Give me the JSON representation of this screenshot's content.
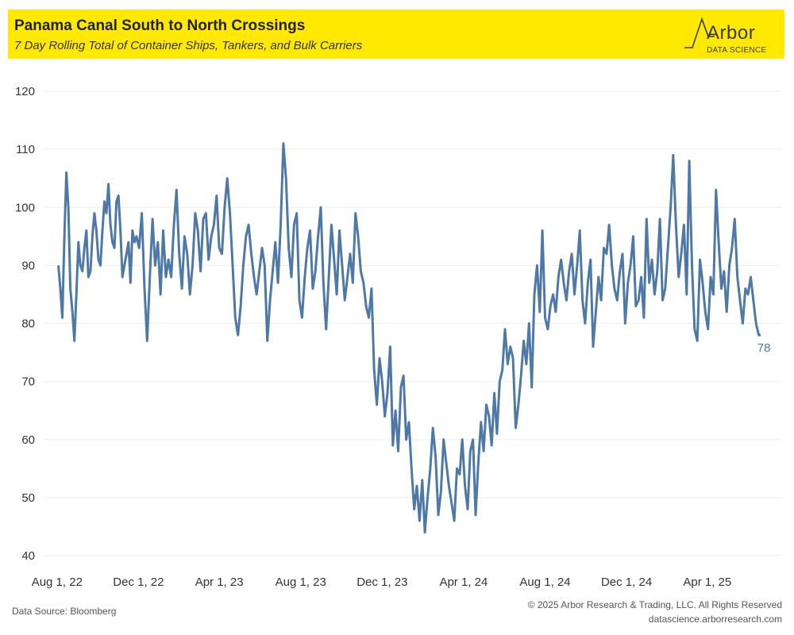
{
  "header": {
    "title": "Panama Canal South to North Crossings",
    "subtitle": "7 Day Rolling Total of Container Ships, Tankers, and Bulk Carriers"
  },
  "logo": {
    "word": "Arbor",
    "sub": "DATA SCIENCE"
  },
  "footer": {
    "source": "Data Source: Bloomberg",
    "copyright": "© 2025 Arbor Research & Trading, LLC. All Rights Reserved",
    "url": "datascience.arborresearch.com"
  },
  "colors": {
    "line": "#4e79a7",
    "banner": "#ffe900",
    "grid": "#eeeeee"
  },
  "chart_data": {
    "type": "line",
    "title": "Panama Canal South to North Crossings",
    "subtitle": "7 Day Rolling Total of Container Ships, Tankers, and Bulk Carriers",
    "xlabel": "",
    "ylabel": "",
    "ylim": [
      40,
      120
    ],
    "yticks": [
      40,
      50,
      60,
      70,
      80,
      90,
      100,
      110,
      120
    ],
    "xticks": [
      "2022-08-01",
      "2022-12-01",
      "2023-04-01",
      "2023-08-01",
      "2023-12-01",
      "2024-04-01",
      "2024-08-01",
      "2024-12-01",
      "2025-04-01"
    ],
    "xtick_labels": [
      "Aug 1, 22",
      "Dec 1, 22",
      "Apr 1, 23",
      "Aug 1, 23",
      "Dec 1, 23",
      "Apr 1, 24",
      "Aug 1, 24",
      "Dec 1, 24",
      "Apr 1, 25"
    ],
    "grid": true,
    "end_label": "78",
    "series": [
      {
        "x": [
          "2022-08-03",
          "2022-08-06",
          "2022-08-09",
          "2022-08-12",
          "2022-08-15",
          "2022-08-18",
          "2022-08-21",
          "2022-08-24",
          "2022-08-27",
          "2022-08-30",
          "2022-09-02",
          "2022-09-05",
          "2022-09-08",
          "2022-09-11",
          "2022-09-14",
          "2022-09-17",
          "2022-09-20",
          "2022-09-23",
          "2022-09-26",
          "2022-09-29",
          "2022-10-02",
          "2022-10-05",
          "2022-10-08",
          "2022-10-11",
          "2022-10-14",
          "2022-10-17",
          "2022-10-20",
          "2022-10-23",
          "2022-10-26",
          "2022-10-29",
          "2022-11-01",
          "2022-11-04",
          "2022-11-07",
          "2022-11-10",
          "2022-11-13",
          "2022-11-16",
          "2022-11-19",
          "2022-11-22",
          "2022-11-25",
          "2022-11-28",
          "2022-12-02",
          "2022-12-06",
          "2022-12-10",
          "2022-12-14",
          "2022-12-18",
          "2022-12-22",
          "2022-12-26",
          "2022-12-30",
          "2023-01-03",
          "2023-01-07",
          "2023-01-11",
          "2023-01-15",
          "2023-01-19",
          "2023-01-23",
          "2023-01-27",
          "2023-01-31",
          "2023-02-04",
          "2023-02-08",
          "2023-02-12",
          "2023-02-16",
          "2023-02-20",
          "2023-02-24",
          "2023-02-28",
          "2023-03-04",
          "2023-03-08",
          "2023-03-12",
          "2023-03-16",
          "2023-03-20",
          "2023-03-24",
          "2023-03-28",
          "2023-04-01",
          "2023-04-05",
          "2023-04-09",
          "2023-04-13",
          "2023-04-17",
          "2023-04-21",
          "2023-04-25",
          "2023-04-29",
          "2023-05-03",
          "2023-05-07",
          "2023-05-11",
          "2023-05-15",
          "2023-05-19",
          "2023-05-23",
          "2023-05-27",
          "2023-05-31",
          "2023-06-04",
          "2023-06-08",
          "2023-06-12",
          "2023-06-16",
          "2023-06-20",
          "2023-06-24",
          "2023-06-28",
          "2023-07-02",
          "2023-07-06",
          "2023-07-10",
          "2023-07-14",
          "2023-07-18",
          "2023-07-22",
          "2023-07-26",
          "2023-07-30",
          "2023-08-03",
          "2023-08-07",
          "2023-08-11",
          "2023-08-15",
          "2023-08-19",
          "2023-08-23",
          "2023-08-27",
          "2023-08-31",
          "2023-09-04",
          "2023-09-08",
          "2023-09-12",
          "2023-09-16",
          "2023-09-20",
          "2023-09-24",
          "2023-09-28",
          "2023-10-02",
          "2023-10-06",
          "2023-10-10",
          "2023-10-14",
          "2023-10-18",
          "2023-10-22",
          "2023-10-26",
          "2023-10-30",
          "2023-11-03",
          "2023-11-07",
          "2023-11-11",
          "2023-11-15",
          "2023-11-19",
          "2023-11-23",
          "2023-11-27",
          "2023-12-01",
          "2023-12-05",
          "2023-12-09",
          "2023-12-13",
          "2023-12-17",
          "2023-12-21",
          "2023-12-25",
          "2023-12-29",
          "2024-01-02",
          "2024-01-06",
          "2024-01-10",
          "2024-01-14",
          "2024-01-18",
          "2024-01-22",
          "2024-01-26",
          "2024-01-30",
          "2024-02-03",
          "2024-02-07",
          "2024-02-11",
          "2024-02-15",
          "2024-02-19",
          "2024-02-23",
          "2024-02-27",
          "2024-03-02",
          "2024-03-06",
          "2024-03-10",
          "2024-03-14",
          "2024-03-18",
          "2024-03-22",
          "2024-03-26",
          "2024-03-30",
          "2024-04-03",
          "2024-04-07",
          "2024-04-11",
          "2024-04-15",
          "2024-04-19",
          "2024-04-23",
          "2024-04-27",
          "2024-05-01",
          "2024-05-05",
          "2024-05-09",
          "2024-05-13",
          "2024-05-17",
          "2024-05-21",
          "2024-05-25",
          "2024-05-29",
          "2024-06-02",
          "2024-06-06",
          "2024-06-10",
          "2024-06-14",
          "2024-06-18",
          "2024-06-22",
          "2024-06-26",
          "2024-06-30",
          "2024-07-04",
          "2024-07-08",
          "2024-07-12",
          "2024-07-16",
          "2024-07-20",
          "2024-07-24",
          "2024-07-28",
          "2024-08-01",
          "2024-08-05",
          "2024-08-09",
          "2024-08-13",
          "2024-08-17",
          "2024-08-21",
          "2024-08-25",
          "2024-08-29",
          "2024-09-02",
          "2024-09-06",
          "2024-09-10",
          "2024-09-14",
          "2024-09-18",
          "2024-09-22",
          "2024-09-26",
          "2024-09-30",
          "2024-10-04",
          "2024-10-08",
          "2024-10-12",
          "2024-10-16",
          "2024-10-20",
          "2024-10-24",
          "2024-10-28",
          "2024-11-01",
          "2024-11-05",
          "2024-11-09",
          "2024-11-13",
          "2024-11-17",
          "2024-11-21",
          "2024-11-25",
          "2024-11-29",
          "2024-12-03",
          "2024-12-07",
          "2024-12-11",
          "2024-12-15",
          "2024-12-19",
          "2024-12-23",
          "2024-12-27",
          "2024-12-31",
          "2025-01-04",
          "2025-01-08",
          "2025-01-12",
          "2025-01-16",
          "2025-01-20",
          "2025-01-24",
          "2025-01-28",
          "2025-02-01",
          "2025-02-05",
          "2025-02-09",
          "2025-02-13",
          "2025-02-17",
          "2025-02-21",
          "2025-02-25",
          "2025-03-01",
          "2025-03-05",
          "2025-03-09",
          "2025-03-13",
          "2025-03-17",
          "2025-03-21",
          "2025-03-25",
          "2025-03-29",
          "2025-04-02",
          "2025-04-06",
          "2025-04-10",
          "2025-04-14",
          "2025-04-18",
          "2025-04-22",
          "2025-04-26",
          "2025-04-30",
          "2025-05-04",
          "2025-05-08",
          "2025-05-12",
          "2025-05-16",
          "2025-05-20",
          "2025-05-24",
          "2025-05-28",
          "2025-06-01",
          "2025-06-05",
          "2025-06-09",
          "2025-06-13",
          "2025-06-17",
          "2025-06-20"
        ],
        "values": [
          90,
          86,
          81,
          95,
          106,
          100,
          86,
          82,
          77,
          85,
          94,
          90,
          89,
          93,
          96,
          88,
          89,
          95,
          99,
          96,
          91,
          90,
          96,
          101,
          99,
          104,
          97,
          94,
          93,
          101,
          102,
          96,
          88,
          90,
          92,
          94,
          87,
          96,
          94,
          95,
          93,
          99,
          86,
          77,
          88,
          98,
          90,
          94,
          85,
          96,
          88,
          91,
          88,
          97,
          103,
          92,
          86,
          95,
          92,
          85,
          90,
          99,
          96,
          89,
          98,
          99,
          91,
          95,
          97,
          102,
          93,
          92,
          100,
          105,
          99,
          90,
          81,
          78,
          83,
          90,
          95,
          97,
          92,
          88,
          85,
          89,
          93,
          90,
          77,
          84,
          89,
          94,
          87,
          97,
          111,
          105,
          93,
          88,
          97,
          99,
          84,
          81,
          88,
          93,
          96,
          86,
          89,
          95,
          100,
          87,
          79,
          88,
          97,
          91,
          85,
          96,
          90,
          84,
          88,
          92,
          87,
          99,
          95,
          89,
          87,
          83,
          81,
          86,
          72,
          66,
          74,
          70,
          64,
          68,
          76,
          59,
          65,
          58,
          69,
          71,
          60,
          63,
          55,
          48,
          52,
          46,
          53,
          44,
          50,
          55,
          62,
          57,
          47,
          51,
          60,
          56,
          52,
          49,
          46,
          55,
          54,
          60,
          52,
          48,
          58,
          60,
          47,
          56,
          63,
          58,
          66,
          64,
          59,
          68,
          61,
          70,
          72,
          79,
          73,
          76,
          74,
          62,
          66,
          71,
          77,
          73,
          80,
          69,
          85,
          90,
          82,
          96,
          81,
          79,
          83,
          85,
          82,
          88,
          91,
          87,
          84,
          89,
          92,
          85,
          90,
          96,
          84,
          80,
          87,
          91,
          76,
          82,
          88,
          84,
          93,
          92,
          97,
          90,
          86,
          84,
          89,
          92,
          80,
          87,
          90,
          95,
          83,
          84,
          88,
          81,
          98,
          87,
          91,
          85,
          89,
          98,
          84,
          86,
          93,
          100,
          109,
          97,
          88,
          92,
          97,
          85,
          108,
          90,
          79,
          77,
          91,
          87,
          82,
          79,
          88,
          85,
          103,
          94,
          86,
          89,
          82,
          90,
          93,
          98,
          88,
          84,
          80,
          86,
          85,
          88,
          84,
          80,
          78,
          78
        ]
      }
    ]
  }
}
